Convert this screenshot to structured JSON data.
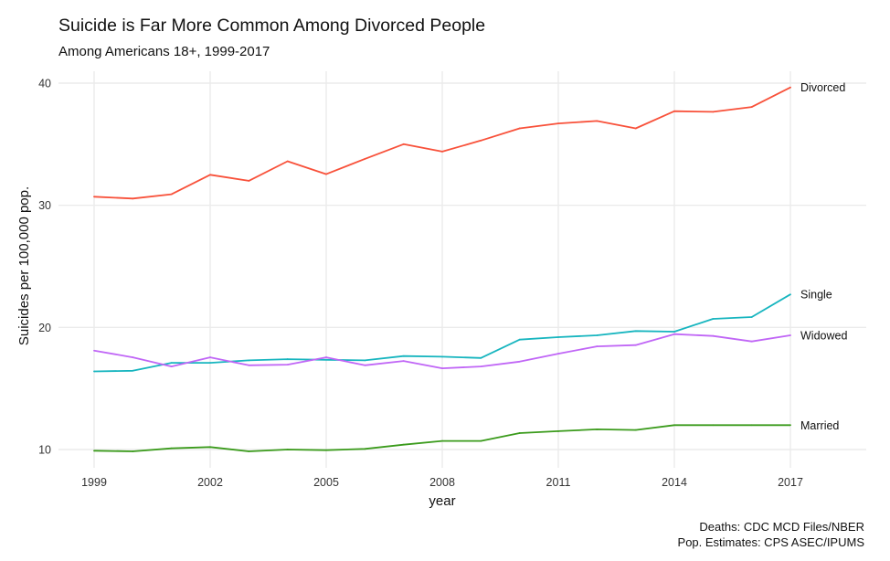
{
  "chart_data": {
    "type": "line",
    "title": "Suicide is Far More Common Among Divorced People",
    "subtitle": "Among Americans 18+, 1999-2017",
    "xlabel": "year",
    "ylabel": "Suicides per 100,000 pop.",
    "caption_lines": [
      "Deaths: CDC MCD Files/NBER",
      "Pop. Estimates: CPS ASEC/IPUMS"
    ],
    "x": [
      1999,
      2000,
      2001,
      2002,
      2003,
      2004,
      2005,
      2006,
      2007,
      2008,
      2009,
      2010,
      2011,
      2012,
      2013,
      2014,
      2015,
      2016,
      2017
    ],
    "xlim": [
      1999,
      2017
    ],
    "ylim": [
      10,
      40
    ],
    "xticks": [
      1999,
      2002,
      2005,
      2008,
      2011,
      2014,
      2017
    ],
    "xtick_labels": [
      "1999",
      "2002",
      "2005",
      "2008",
      "2011",
      "2014",
      "2017"
    ],
    "yticks": [
      10,
      20,
      30,
      40
    ],
    "ytick_labels": [
      "10",
      "20",
      "30",
      "40"
    ],
    "grid": true,
    "legend": "direct labels at right end of lines",
    "series": [
      {
        "name": "Divorced",
        "color": "#f8513a",
        "values": [
          30.7,
          30.55,
          30.9,
          32.5,
          32.0,
          33.6,
          32.55,
          33.8,
          35.0,
          34.4,
          35.3,
          36.3,
          36.7,
          36.9,
          36.3,
          37.7,
          37.65,
          38.05,
          39.65
        ]
      },
      {
        "name": "Single",
        "color": "#17b5bf",
        "values": [
          16.4,
          16.45,
          17.1,
          17.1,
          17.3,
          17.4,
          17.35,
          17.3,
          17.65,
          17.6,
          17.5,
          19.0,
          19.2,
          19.35,
          19.7,
          19.65,
          20.7,
          20.85,
          22.7
        ]
      },
      {
        "name": "Widowed",
        "color": "#c066f6",
        "values": [
          18.1,
          17.55,
          16.8,
          17.55,
          16.9,
          16.95,
          17.55,
          16.9,
          17.25,
          16.65,
          16.8,
          17.2,
          17.85,
          18.45,
          18.55,
          19.45,
          19.3,
          18.85,
          19.35
        ]
      },
      {
        "name": "Married",
        "color": "#3b9b1c",
        "values": [
          9.9,
          9.85,
          10.1,
          10.2,
          9.85,
          10.0,
          9.95,
          10.05,
          10.4,
          10.7,
          10.7,
          11.35,
          11.5,
          11.65,
          11.6,
          12.0,
          12.0,
          12.0,
          12.0
        ]
      }
    ]
  }
}
